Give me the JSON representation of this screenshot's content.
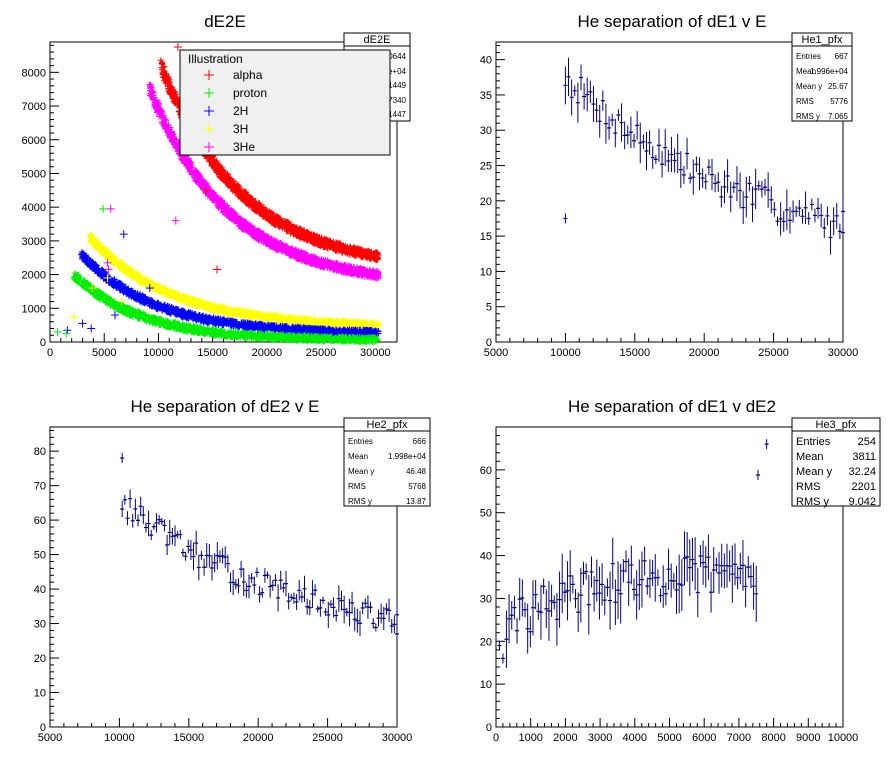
{
  "colors": {
    "alpha": "#ff0000",
    "proton": "#00ee00",
    "2H": "#0000ff",
    "3H": "#ffff00",
    "3He": "#ff00ff",
    "profile": "#000080"
  },
  "chart_data": [
    {
      "type": "scatter",
      "title": "dE2E",
      "xlim": [
        0,
        32000
      ],
      "ylim": [
        0,
        8900
      ],
      "xticks": [
        0,
        5000,
        10000,
        15000,
        20000,
        25000,
        30000
      ],
      "yticks": [
        0,
        1000,
        2000,
        3000,
        4000,
        5000,
        6000,
        7000,
        8000
      ],
      "stats_box": {
        "title": "dE2E",
        "visible_values": [
          "80644",
          "765e+04",
          "1449",
          "7340",
          "1447"
        ]
      },
      "legend": {
        "title": "Illustration",
        "position": "top-right",
        "entries": [
          "alpha",
          "proton",
          "2H",
          "3H",
          "3He"
        ]
      },
      "bands": [
        {
          "name": "alpha",
          "color": "#ff0000",
          "x0": 10200,
          "y0": 8200,
          "x1": 30300,
          "y1": 2100,
          "k": 2.6,
          "w": 260
        },
        {
          "name": "3He",
          "color": "#ff00ff",
          "x0": 9200,
          "y0": 7500,
          "x1": 30300,
          "y1": 1650,
          "k": 2.8,
          "w": 240
        },
        {
          "name": "3H",
          "color": "#ffff00",
          "x0": 3700,
          "y0": 3100,
          "x1": 30300,
          "y1": 430,
          "k": 3.5,
          "w": 160
        },
        {
          "name": "2H",
          "color": "#0000ff",
          "x0": 2900,
          "y0": 2600,
          "x1": 30300,
          "y1": 240,
          "k": 4.0,
          "w": 160
        },
        {
          "name": "proton",
          "color": "#00ee00",
          "x0": 2200,
          "y0": 2000,
          "x1": 30300,
          "y1": 50,
          "k": 4.5,
          "w": 160
        }
      ],
      "outliers": [
        {
          "x": 11800,
          "y": 8750,
          "c": "#ff0000"
        },
        {
          "x": 14400,
          "y": 4500,
          "c": "#ff0000"
        },
        {
          "x": 15400,
          "y": 2150,
          "c": "#ff0000"
        },
        {
          "x": 11600,
          "y": 3600,
          "c": "#ff00ff"
        },
        {
          "x": 5600,
          "y": 3950,
          "c": "#ff00ff"
        },
        {
          "x": 5300,
          "y": 2350,
          "c": "#ff00ff"
        },
        {
          "x": 4900,
          "y": 3950,
          "c": "#00ee00"
        },
        {
          "x": 6800,
          "y": 3200,
          "c": "#0000ff"
        },
        {
          "x": 9200,
          "y": 1600,
          "c": "#0000ff"
        },
        {
          "x": 8300,
          "y": 1400,
          "c": "#0000ff"
        },
        {
          "x": 3000,
          "y": 550,
          "c": "#0000ff"
        },
        {
          "x": 3800,
          "y": 400,
          "c": "#0000ff"
        },
        {
          "x": 6000,
          "y": 800,
          "c": "#0000ff"
        },
        {
          "x": 1600,
          "y": 350,
          "c": "#0000ff"
        },
        {
          "x": 2200,
          "y": 750,
          "c": "#ffff00"
        },
        {
          "x": 5300,
          "y": 1900,
          "c": "#ffff00"
        },
        {
          "x": 3900,
          "y": 1600,
          "c": "#ffff00"
        },
        {
          "x": 6600,
          "y": 1200,
          "c": "#ffff00"
        },
        {
          "x": 700,
          "y": 300,
          "c": "#00ee00"
        },
        {
          "x": 1500,
          "y": 250,
          "c": "#00ee00"
        },
        {
          "x": 5400,
          "y": 2150,
          "c": "#ff00ff"
        },
        {
          "x": 7000,
          "y": 1000,
          "c": "#00ee00"
        }
      ]
    },
    {
      "type": "scatter",
      "title": "He separation of dE1 v E",
      "xlim": [
        5000,
        30000
      ],
      "ylim": [
        0,
        42.5
      ],
      "xticks": [
        5000,
        10000,
        15000,
        20000,
        25000,
        30000
      ],
      "yticks": [
        0,
        5,
        10,
        15,
        20,
        25,
        30,
        35,
        40
      ],
      "stats_box": {
        "title": "He1_pfx",
        "labels": [
          "Entries",
          "Mean",
          "Mean y",
          "RMS",
          "RMS y"
        ],
        "values": [
          "667",
          "1.996e+04",
          "25.67",
          "5776",
          "7.065"
        ]
      },
      "series": [
        {
          "x0": 10000,
          "x1": 30000,
          "a": 37.5,
          "b": 16.5,
          "k": 1.4,
          "noise": 2.2,
          "ey": 1.6,
          "n": 90,
          "seed": 7
        }
      ],
      "extras": [
        {
          "x": 10000,
          "y": 17.5
        },
        {
          "x": 30000,
          "y": 15.5
        }
      ]
    },
    {
      "type": "scatter",
      "title": "He separation of dE2 v E",
      "xlim": [
        5000,
        30000
      ],
      "ylim": [
        0,
        87
      ],
      "xticks": [
        5000,
        10000,
        15000,
        20000,
        25000,
        30000
      ],
      "yticks": [
        0,
        10,
        20,
        30,
        40,
        50,
        60,
        70,
        80
      ],
      "stats_box": {
        "title": "He2_pfx",
        "labels": [
          "Entries",
          "Mean",
          "Mean y",
          "RMS",
          "RMS y"
        ],
        "values": [
          "666",
          "1.998e+04",
          "46.48",
          "5768",
          "13.87"
        ]
      },
      "series": [
        {
          "x0": 10200,
          "x1": 30000,
          "a": 65,
          "b": 31,
          "k": 1.6,
          "noise": 3.5,
          "ey": 2.3,
          "n": 105,
          "seed": 13
        }
      ],
      "extras": [
        {
          "x": 10200,
          "y": 78
        },
        {
          "x": 30000,
          "y": 27
        }
      ]
    },
    {
      "type": "scatter",
      "title": "He separation of dE1 v dE2",
      "xlim": [
        0,
        10000
      ],
      "ylim": [
        0,
        70
      ],
      "xticks": [
        0,
        1000,
        2000,
        3000,
        4000,
        5000,
        6000,
        7000,
        8000,
        9000,
        10000
      ],
      "yticks": [
        0,
        10,
        20,
        30,
        40,
        50,
        60
      ],
      "stats_box": {
        "title": "He3_pfx",
        "labels": [
          "Entries",
          "Mean",
          "Mean y",
          "RMS",
          "RMS y"
        ],
        "values": [
          "254",
          "3811",
          "32.24",
          "2201",
          "9.042"
        ]
      },
      "series": [
        {
          "x0": 300,
          "x1": 7500,
          "a": 23,
          "b": 36,
          "k": 0.55,
          "noise": 5,
          "ey": 4,
          "n": 95,
          "seed": 29
        }
      ],
      "extras": [
        {
          "x": 100,
          "y": 19
        },
        {
          "x": 200,
          "y": 16
        },
        {
          "x": 7550,
          "y": 58.8
        },
        {
          "x": 7800,
          "y": 66
        }
      ]
    }
  ]
}
